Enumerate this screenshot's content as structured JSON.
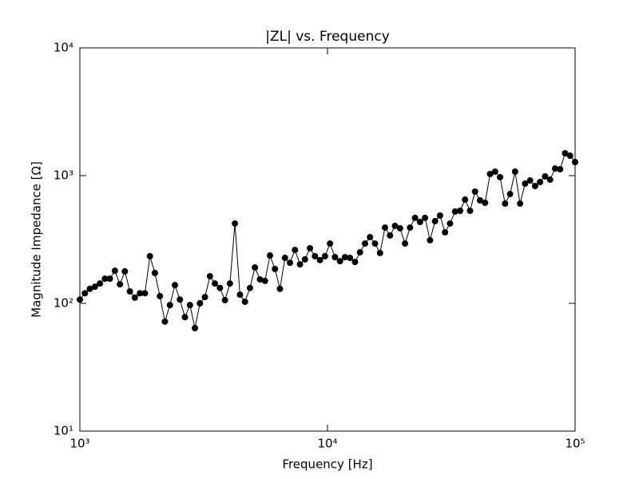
{
  "chart_data": {
    "type": "line",
    "title": "|ZL| vs. Frequency",
    "xlabel": "Frequency [Hz]",
    "ylabel": "Magnitude Impedance [Ω]",
    "xscale": "log",
    "yscale": "log",
    "grid": false,
    "color": "#000000",
    "marker": "circle",
    "xlim": [
      1000,
      100000
    ],
    "ylim": [
      10,
      10000
    ],
    "xticks": [
      {
        "value": 1000,
        "label": "10³"
      },
      {
        "value": 10000,
        "label": "10⁴"
      },
      {
        "value": 100000,
        "label": "10⁵"
      }
    ],
    "yticks": [
      {
        "value": 10,
        "label": "10¹"
      },
      {
        "value": 100,
        "label": "10²"
      },
      {
        "value": 1000,
        "label": "10³"
      },
      {
        "value": 10000,
        "label": "10⁴"
      }
    ],
    "x": [
      1000,
      1048,
      1097,
      1150,
      1205,
      1262,
      1322,
      1385,
      1451,
      1520,
      1592,
      1668,
      1748,
      1831,
      1918,
      2009,
      2105,
      2205,
      2310,
      2420,
      2535,
      2656,
      2783,
      2915,
      3054,
      3199,
      3352,
      3511,
      3678,
      3854,
      4037,
      4229,
      4431,
      4642,
      4863,
      5094,
      5337,
      5591,
      5857,
      6136,
      6428,
      6734,
      7055,
      7391,
      7743,
      8111,
      8498,
      8902,
      9326,
      9770,
      10235,
      10723,
      11233,
      11768,
      12328,
      12915,
      13530,
      14175,
      14850,
      15557,
      16298,
      17074,
      17886,
      18738,
      19630,
      20565,
      21544,
      22570,
      23645,
      24771,
      25950,
      27186,
      28480,
      29836,
      31257,
      32745,
      34305,
      35938,
      37649,
      39442,
      41320,
      43288,
      45349,
      47508,
      49770,
      52140,
      54623,
      57224,
      59948,
      62803,
      65793,
      68926,
      72208,
      75646,
      79248,
      83022,
      86975,
      91116,
      95455,
      100000
    ],
    "values": [
      107,
      120,
      130,
      135,
      143,
      156,
      156,
      180,
      141,
      178,
      124,
      111,
      120,
      120,
      234,
      173,
      114,
      72,
      97,
      139,
      107,
      78,
      97,
      64,
      100,
      112,
      163,
      143,
      132,
      106,
      143,
      422,
      117,
      103,
      132,
      191,
      154,
      150,
      237,
      186,
      130,
      227,
      208,
      262,
      202,
      221,
      270,
      234,
      218,
      234,
      294,
      230,
      214,
      230,
      227,
      211,
      251,
      294,
      330,
      294,
      248,
      392,
      340,
      404,
      387,
      294,
      392,
      467,
      434,
      467,
      312,
      440,
      487,
      360,
      422,
      523,
      531,
      649,
      531,
      750,
      640,
      613,
      1029,
      1075,
      972,
      604,
      718,
      1075,
      604,
      866,
      917,
      829,
      891,
      986,
      930,
      1137,
      1122,
      1496,
      1432,
      1277
    ]
  }
}
